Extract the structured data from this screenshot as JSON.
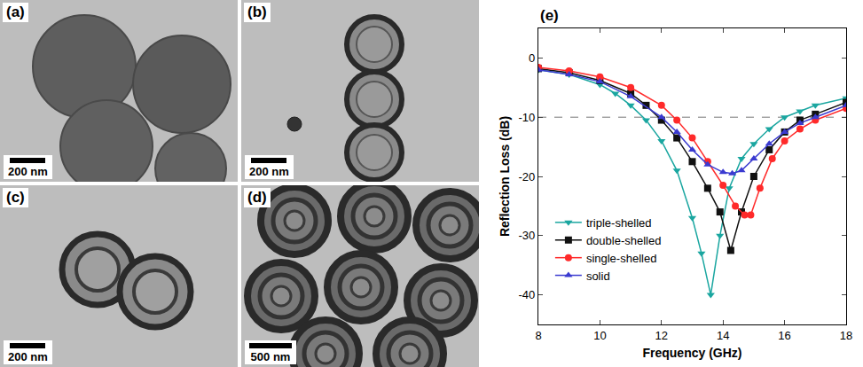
{
  "panels": [
    {
      "label": "(a)",
      "scale_bar": "200 nm"
    },
    {
      "label": "(b)",
      "scale_bar": "200 nm"
    },
    {
      "label": "(c)",
      "scale_bar": "200 nm"
    },
    {
      "label": "(d)",
      "scale_bar": "500 nm"
    }
  ],
  "chart_data": {
    "type": "line",
    "title": "(e)",
    "x_label": "Frequency (GHz)",
    "y_label": "Reflection Loss (dB)",
    "xlim": [
      8,
      18
    ],
    "xticks": [
      8,
      10,
      12,
      14,
      16,
      18
    ],
    "ylim": [
      -45,
      5
    ],
    "yticks": [
      0,
      -10,
      -20,
      -30,
      -40
    ],
    "hline": -10,
    "grid": false,
    "legend": "lower left",
    "series": [
      {
        "name": "triple-shelled",
        "color": "#1aa6a0",
        "marker": "triangle-down",
        "line_style": "solid",
        "x": [
          8,
          9,
          10,
          10.5,
          11,
          11.5,
          12,
          12.5,
          13,
          13.3,
          13.6,
          13.9,
          14.2,
          14.6,
          15,
          15.5,
          16,
          16.5,
          17,
          18
        ],
        "values": [
          -2,
          -2.8,
          -4.5,
          -6,
          -8,
          -10.5,
          -14,
          -19,
          -27,
          -33,
          -40,
          -30,
          -22,
          -17,
          -14.5,
          -12,
          -10,
          -9,
          -8,
          -6.8
        ]
      },
      {
        "name": "double-shelled",
        "color": "#111111",
        "marker": "square",
        "line_style": "solid",
        "x": [
          8,
          9,
          10,
          11,
          11.5,
          12,
          12.5,
          13,
          13.5,
          13.9,
          14.25,
          14.6,
          15,
          15.5,
          16,
          16.5,
          17,
          18
        ],
        "values": [
          -1.8,
          -2.5,
          -3.8,
          -6,
          -8,
          -10.5,
          -13.5,
          -17.5,
          -22,
          -26,
          -32.5,
          -26,
          -20,
          -15.5,
          -12.5,
          -10.5,
          -9.5,
          -7.5
        ]
      },
      {
        "name": "single-shelled",
        "color": "#ff2a2a",
        "marker": "circle",
        "line_style": "solid",
        "x": [
          8,
          9,
          10,
          11,
          12,
          12.5,
          13,
          13.5,
          14,
          14.4,
          14.7,
          14.9,
          15.2,
          15.6,
          16,
          16.5,
          17,
          18
        ],
        "values": [
          -1.6,
          -2.2,
          -3.2,
          -5,
          -8,
          -10.5,
          -13.5,
          -17.5,
          -21.5,
          -25,
          -26.5,
          -26.5,
          -22,
          -17,
          -14,
          -12,
          -10.5,
          -8.5
        ]
      },
      {
        "name": "solid",
        "color": "#3a3ad0",
        "marker": "triangle-up",
        "line_style": "solid",
        "x": [
          8,
          9,
          10,
          11,
          12,
          12.5,
          13,
          13.5,
          14,
          14.3,
          14.6,
          15,
          15.5,
          16,
          16.5,
          17,
          18
        ],
        "values": [
          -2,
          -2.8,
          -4,
          -6.5,
          -10,
          -12.5,
          -15.5,
          -18,
          -19.3,
          -19.5,
          -19,
          -17,
          -14.5,
          -12.5,
          -11,
          -10,
          -8
        ]
      }
    ]
  }
}
